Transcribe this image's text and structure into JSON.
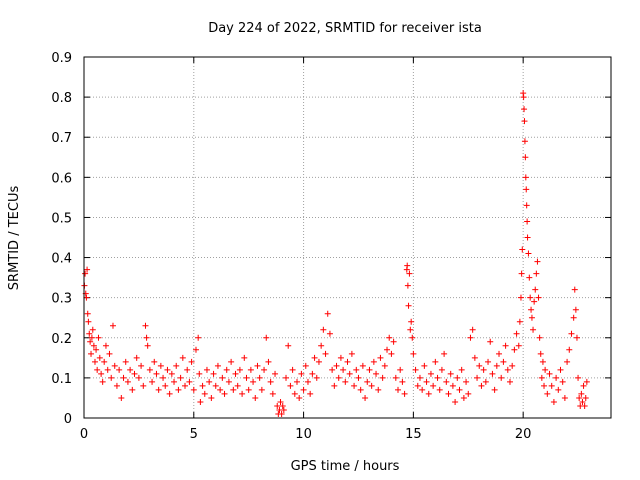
{
  "chart_data": {
    "type": "scatter",
    "title": "Day 224 of 2022, SRMTID for receiver ista",
    "xlabel": "GPS time / hours",
    "ylabel": "SRMTID / TECUs",
    "xlim": [
      0,
      24
    ],
    "ylim": [
      0,
      0.9
    ],
    "grid": true,
    "marker": "+",
    "series": [
      {
        "name": "SRMTID",
        "color": "#ff0000"
      }
    ],
    "x_ticks": [
      {
        "value": 0,
        "label": "0"
      },
      {
        "value": 5,
        "label": "5"
      },
      {
        "value": 10,
        "label": "10"
      },
      {
        "value": 15,
        "label": "15"
      },
      {
        "value": 20,
        "label": "20"
      }
    ],
    "y_ticks": [
      {
        "value": 0,
        "label": "0"
      },
      {
        "value": 0.1,
        "label": "0.1"
      },
      {
        "value": 0.2,
        "label": "0.2"
      },
      {
        "value": 0.3,
        "label": "0.3"
      },
      {
        "value": 0.4,
        "label": "0.4"
      },
      {
        "value": 0.5,
        "label": "0.5"
      },
      {
        "value": 0.6,
        "label": "0.6"
      },
      {
        "value": 0.7,
        "label": "0.7"
      },
      {
        "value": 0.8,
        "label": "0.8"
      },
      {
        "value": 0.9,
        "label": "0.9"
      }
    ],
    "points": [
      [
        0.02,
        0.33
      ],
      [
        0.05,
        0.36
      ],
      [
        0.08,
        0.31
      ],
      [
        0.11,
        0.3
      ],
      [
        0.14,
        0.37
      ],
      [
        0.17,
        0.26
      ],
      [
        0.2,
        0.24
      ],
      [
        0.24,
        0.21
      ],
      [
        0.28,
        0.19
      ],
      [
        0.32,
        0.16
      ],
      [
        0.36,
        0.2
      ],
      [
        0.4,
        0.22
      ],
      [
        0.45,
        0.18
      ],
      [
        0.5,
        0.14
      ],
      [
        0.55,
        0.17
      ],
      [
        0.6,
        0.12
      ],
      [
        0.66,
        0.2
      ],
      [
        0.72,
        0.15
      ],
      [
        0.78,
        0.11
      ],
      [
        0.85,
        0.09
      ],
      [
        0.92,
        0.14
      ],
      [
        1.0,
        0.18
      ],
      [
        1.08,
        0.12
      ],
      [
        1.16,
        0.16
      ],
      [
        1.24,
        0.1
      ],
      [
        1.32,
        0.23
      ],
      [
        1.4,
        0.13
      ],
      [
        1.5,
        0.08
      ],
      [
        1.6,
        0.12
      ],
      [
        1.7,
        0.05
      ],
      [
        1.8,
        0.1
      ],
      [
        1.9,
        0.14
      ],
      [
        2.0,
        0.09
      ],
      [
        2.1,
        0.12
      ],
      [
        2.2,
        0.07
      ],
      [
        2.3,
        0.11
      ],
      [
        2.4,
        0.15
      ],
      [
        2.5,
        0.1
      ],
      [
        2.6,
        0.13
      ],
      [
        2.7,
        0.08
      ],
      [
        2.8,
        0.23
      ],
      [
        2.85,
        0.2
      ],
      [
        2.9,
        0.18
      ],
      [
        3.0,
        0.12
      ],
      [
        3.1,
        0.09
      ],
      [
        3.2,
        0.14
      ],
      [
        3.3,
        0.11
      ],
      [
        3.4,
        0.07
      ],
      [
        3.5,
        0.13
      ],
      [
        3.6,
        0.1
      ],
      [
        3.7,
        0.08
      ],
      [
        3.8,
        0.12
      ],
      [
        3.9,
        0.06
      ],
      [
        4.0,
        0.11
      ],
      [
        4.1,
        0.09
      ],
      [
        4.2,
        0.13
      ],
      [
        4.3,
        0.07
      ],
      [
        4.4,
        0.1
      ],
      [
        4.5,
        0.15
      ],
      [
        4.6,
        0.08
      ],
      [
        4.7,
        0.12
      ],
      [
        4.8,
        0.09
      ],
      [
        4.9,
        0.14
      ],
      [
        5.0,
        0.07
      ],
      [
        5.1,
        0.17
      ],
      [
        5.2,
        0.2
      ],
      [
        5.25,
        0.11
      ],
      [
        5.3,
        0.04
      ],
      [
        5.4,
        0.08
      ],
      [
        5.5,
        0.06
      ],
      [
        5.6,
        0.12
      ],
      [
        5.7,
        0.09
      ],
      [
        5.8,
        0.05
      ],
      [
        5.9,
        0.11
      ],
      [
        6.0,
        0.08
      ],
      [
        6.1,
        0.13
      ],
      [
        6.2,
        0.07
      ],
      [
        6.3,
        0.1
      ],
      [
        6.4,
        0.06
      ],
      [
        6.5,
        0.12
      ],
      [
        6.6,
        0.09
      ],
      [
        6.7,
        0.14
      ],
      [
        6.8,
        0.07
      ],
      [
        6.9,
        0.11
      ],
      [
        7.0,
        0.08
      ],
      [
        7.1,
        0.12
      ],
      [
        7.2,
        0.06
      ],
      [
        7.3,
        0.15
      ],
      [
        7.4,
        0.1
      ],
      [
        7.5,
        0.07
      ],
      [
        7.6,
        0.12
      ],
      [
        7.7,
        0.09
      ],
      [
        7.8,
        0.05
      ],
      [
        7.9,
        0.13
      ],
      [
        8.0,
        0.1
      ],
      [
        8.1,
        0.07
      ],
      [
        8.2,
        0.12
      ],
      [
        8.3,
        0.2
      ],
      [
        8.4,
        0.14
      ],
      [
        8.5,
        0.09
      ],
      [
        8.6,
        0.06
      ],
      [
        8.7,
        0.11
      ],
      [
        8.8,
        0.03
      ],
      [
        8.85,
        0.01
      ],
      [
        8.9,
        0.02
      ],
      [
        8.95,
        0.04
      ],
      [
        9.0,
        0.01
      ],
      [
        9.05,
        0.03
      ],
      [
        9.1,
        0.02
      ],
      [
        9.2,
        0.1
      ],
      [
        9.3,
        0.18
      ],
      [
        9.4,
        0.08
      ],
      [
        9.5,
        0.12
      ],
      [
        9.6,
        0.06
      ],
      [
        9.7,
        0.09
      ],
      [
        9.8,
        0.05
      ],
      [
        9.9,
        0.11
      ],
      [
        10.0,
        0.07
      ],
      [
        10.1,
        0.13
      ],
      [
        10.2,
        0.09
      ],
      [
        10.3,
        0.06
      ],
      [
        10.4,
        0.11
      ],
      [
        10.5,
        0.15
      ],
      [
        10.6,
        0.1
      ],
      [
        10.7,
        0.14
      ],
      [
        10.8,
        0.18
      ],
      [
        10.9,
        0.22
      ],
      [
        11.0,
        0.16
      ],
      [
        11.1,
        0.26
      ],
      [
        11.2,
        0.21
      ],
      [
        11.3,
        0.12
      ],
      [
        11.4,
        0.08
      ],
      [
        11.5,
        0.13
      ],
      [
        11.6,
        0.1
      ],
      [
        11.7,
        0.15
      ],
      [
        11.8,
        0.12
      ],
      [
        11.9,
        0.09
      ],
      [
        12.0,
        0.14
      ],
      [
        12.1,
        0.11
      ],
      [
        12.2,
        0.16
      ],
      [
        12.3,
        0.08
      ],
      [
        12.4,
        0.12
      ],
      [
        12.5,
        0.1
      ],
      [
        12.6,
        0.07
      ],
      [
        12.7,
        0.13
      ],
      [
        12.8,
        0.05
      ],
      [
        12.9,
        0.09
      ],
      [
        13.0,
        0.12
      ],
      [
        13.1,
        0.08
      ],
      [
        13.2,
        0.14
      ],
      [
        13.3,
        0.11
      ],
      [
        13.4,
        0.07
      ],
      [
        13.5,
        0.15
      ],
      [
        13.6,
        0.1
      ],
      [
        13.7,
        0.13
      ],
      [
        13.8,
        0.17
      ],
      [
        13.9,
        0.2
      ],
      [
        14.0,
        0.16
      ],
      [
        14.1,
        0.19
      ],
      [
        14.2,
        0.1
      ],
      [
        14.3,
        0.07
      ],
      [
        14.4,
        0.12
      ],
      [
        14.5,
        0.09
      ],
      [
        14.6,
        0.06
      ],
      [
        14.7,
        0.37
      ],
      [
        14.72,
        0.38
      ],
      [
        14.75,
        0.33
      ],
      [
        14.78,
        0.28
      ],
      [
        14.82,
        0.36
      ],
      [
        14.86,
        0.22
      ],
      [
        14.9,
        0.24
      ],
      [
        14.95,
        0.2
      ],
      [
        15.0,
        0.16
      ],
      [
        15.1,
        0.12
      ],
      [
        15.2,
        0.08
      ],
      [
        15.3,
        0.1
      ],
      [
        15.4,
        0.07
      ],
      [
        15.5,
        0.13
      ],
      [
        15.6,
        0.09
      ],
      [
        15.7,
        0.06
      ],
      [
        15.8,
        0.11
      ],
      [
        15.9,
        0.08
      ],
      [
        16.0,
        0.14
      ],
      [
        16.1,
        0.1
      ],
      [
        16.2,
        0.07
      ],
      [
        16.3,
        0.12
      ],
      [
        16.4,
        0.16
      ],
      [
        16.5,
        0.09
      ],
      [
        16.6,
        0.06
      ],
      [
        16.7,
        0.11
      ],
      [
        16.8,
        0.08
      ],
      [
        16.9,
        0.04
      ],
      [
        17.0,
        0.1
      ],
      [
        17.1,
        0.07
      ],
      [
        17.2,
        0.12
      ],
      [
        17.3,
        0.05
      ],
      [
        17.4,
        0.09
      ],
      [
        17.5,
        0.06
      ],
      [
        17.6,
        0.2
      ],
      [
        17.7,
        0.22
      ],
      [
        17.8,
        0.15
      ],
      [
        17.9,
        0.1
      ],
      [
        18.0,
        0.13
      ],
      [
        18.1,
        0.08
      ],
      [
        18.2,
        0.12
      ],
      [
        18.3,
        0.09
      ],
      [
        18.4,
        0.14
      ],
      [
        18.5,
        0.19
      ],
      [
        18.6,
        0.11
      ],
      [
        18.7,
        0.07
      ],
      [
        18.8,
        0.13
      ],
      [
        18.9,
        0.16
      ],
      [
        19.0,
        0.1
      ],
      [
        19.1,
        0.14
      ],
      [
        19.2,
        0.18
      ],
      [
        19.3,
        0.12
      ],
      [
        19.4,
        0.09
      ],
      [
        19.5,
        0.13
      ],
      [
        19.6,
        0.17
      ],
      [
        19.7,
        0.21
      ],
      [
        19.8,
        0.18
      ],
      [
        19.85,
        0.24
      ],
      [
        19.9,
        0.3
      ],
      [
        19.93,
        0.36
      ],
      [
        19.96,
        0.42
      ],
      [
        20.0,
        0.81
      ],
      [
        20.02,
        0.8
      ],
      [
        20.04,
        0.77
      ],
      [
        20.06,
        0.74
      ],
      [
        20.08,
        0.69
      ],
      [
        20.1,
        0.65
      ],
      [
        20.12,
        0.6
      ],
      [
        20.14,
        0.57
      ],
      [
        20.16,
        0.53
      ],
      [
        20.18,
        0.49
      ],
      [
        20.2,
        0.45
      ],
      [
        20.24,
        0.41
      ],
      [
        20.28,
        0.35
      ],
      [
        20.32,
        0.3
      ],
      [
        20.36,
        0.27
      ],
      [
        20.4,
        0.25
      ],
      [
        20.45,
        0.22
      ],
      [
        20.5,
        0.29
      ],
      [
        20.55,
        0.32
      ],
      [
        20.6,
        0.36
      ],
      [
        20.65,
        0.39
      ],
      [
        20.7,
        0.3
      ],
      [
        20.75,
        0.2
      ],
      [
        20.8,
        0.16
      ],
      [
        20.85,
        0.1
      ],
      [
        20.9,
        0.14
      ],
      [
        20.95,
        0.08
      ],
      [
        21.0,
        0.12
      ],
      [
        21.1,
        0.06
      ],
      [
        21.2,
        0.11
      ],
      [
        21.3,
        0.08
      ],
      [
        21.4,
        0.04
      ],
      [
        21.5,
        0.1
      ],
      [
        21.6,
        0.07
      ],
      [
        21.7,
        0.12
      ],
      [
        21.8,
        0.09
      ],
      [
        21.9,
        0.05
      ],
      [
        22.0,
        0.14
      ],
      [
        22.1,
        0.17
      ],
      [
        22.2,
        0.21
      ],
      [
        22.3,
        0.25
      ],
      [
        22.35,
        0.32
      ],
      [
        22.4,
        0.27
      ],
      [
        22.45,
        0.2
      ],
      [
        22.5,
        0.1
      ],
      [
        22.55,
        0.05
      ],
      [
        22.6,
        0.03
      ],
      [
        22.65,
        0.06
      ],
      [
        22.7,
        0.04
      ],
      [
        22.75,
        0.08
      ],
      [
        22.8,
        0.03
      ],
      [
        22.85,
        0.05
      ],
      [
        22.9,
        0.09
      ]
    ]
  }
}
